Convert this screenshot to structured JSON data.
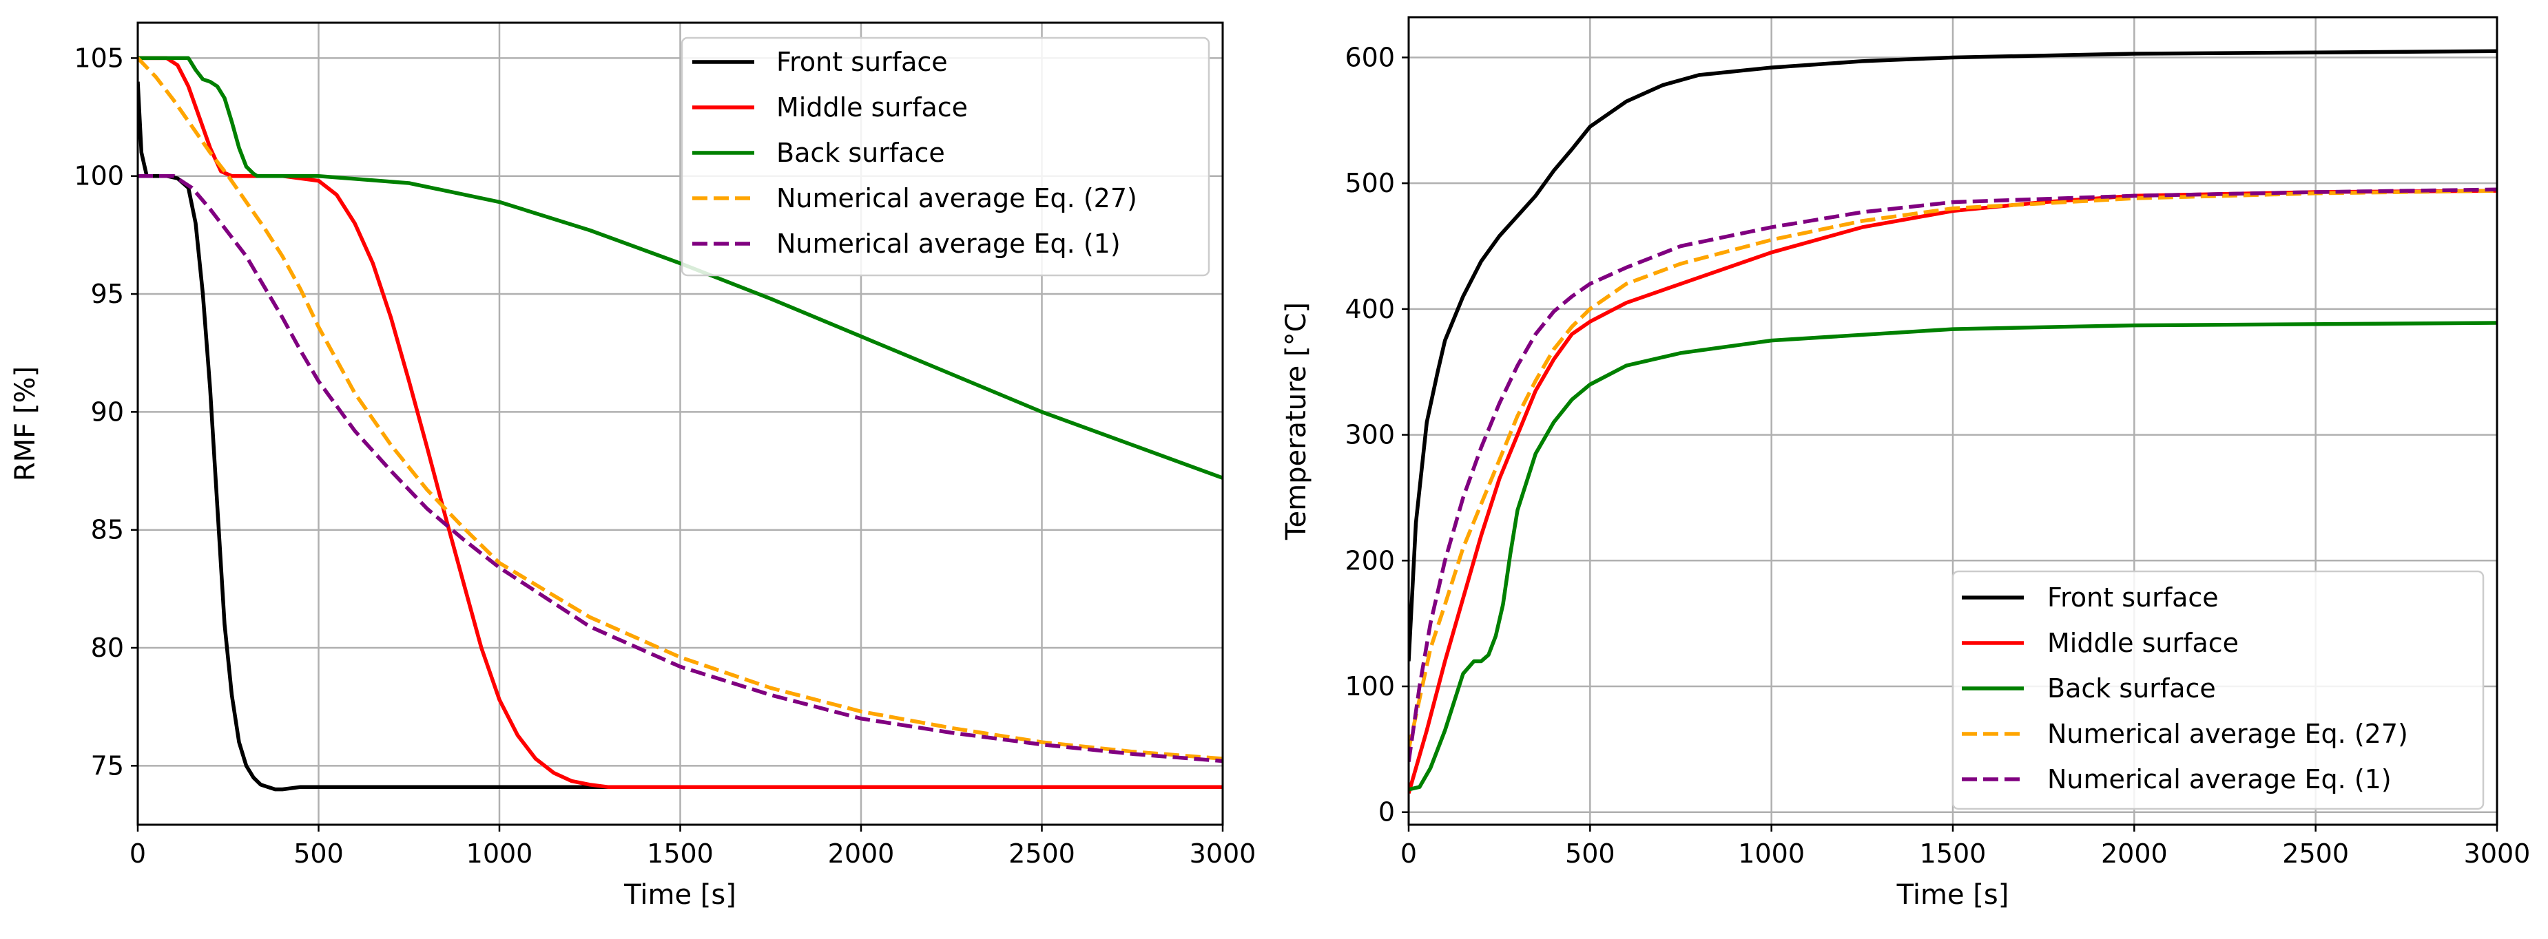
{
  "chart_data": [
    {
      "type": "line",
      "xlabel": "Time [s]",
      "ylabel": "RMF [%]",
      "xlim": [
        0,
        3000
      ],
      "ylim": [
        72.5,
        106.5
      ],
      "xticks": [
        0,
        500,
        1000,
        1500,
        2000,
        2500,
        3000
      ],
      "yticks": [
        75,
        80,
        85,
        90,
        95,
        100,
        105
      ],
      "grid": true,
      "legend_position": "upper right",
      "series": [
        {
          "name": "Front surface",
          "color": "#000000",
          "dash": "solid",
          "x": [
            0,
            10,
            25,
            50,
            80,
            110,
            140,
            160,
            180,
            200,
            220,
            240,
            260,
            280,
            300,
            320,
            340,
            360,
            380,
            400,
            450,
            500,
            1000,
            2000,
            3000
          ],
          "y": [
            104,
            101,
            100,
            100,
            100,
            99.9,
            99.5,
            98,
            95,
            91,
            86,
            81,
            78,
            76,
            75,
            74.5,
            74.2,
            74.1,
            74,
            74,
            74.1,
            74.1,
            74.1,
            74.1,
            74.1
          ]
        },
        {
          "name": "Middle surface",
          "color": "#ff0000",
          "dash": "solid",
          "x": [
            0,
            80,
            110,
            140,
            170,
            200,
            230,
            260,
            300,
            400,
            500,
            550,
            600,
            650,
            700,
            750,
            800,
            850,
            900,
            950,
            1000,
            1050,
            1100,
            1150,
            1200,
            1250,
            1300,
            1350,
            1400,
            1500,
            2000,
            3000
          ],
          "y": [
            105,
            105,
            104.7,
            103.8,
            102.5,
            101.2,
            100.2,
            100,
            100,
            100,
            99.8,
            99.2,
            98,
            96.3,
            94,
            91.3,
            88.5,
            85.6,
            82.8,
            80,
            77.8,
            76.3,
            75.3,
            74.7,
            74.35,
            74.2,
            74.1,
            74.1,
            74.1,
            74.1,
            74.1,
            74.1
          ]
        },
        {
          "name": "Back surface",
          "color": "#008000",
          "dash": "solid",
          "x": [
            0,
            140,
            160,
            180,
            200,
            220,
            240,
            260,
            280,
            300,
            320,
            330,
            340,
            350,
            500,
            750,
            1000,
            1250,
            1500,
            1750,
            2000,
            2250,
            2500,
            2750,
            3000
          ],
          "y": [
            105,
            105,
            104.5,
            104.1,
            104,
            103.8,
            103.3,
            102.3,
            101.2,
            100.4,
            100.1,
            100,
            100,
            100,
            100,
            99.7,
            98.9,
            97.7,
            96.3,
            94.8,
            93.2,
            91.6,
            90,
            88.6,
            87.2
          ]
        },
        {
          "name": "Numerical average Eq. (27)",
          "color": "#ffa500",
          "dash": "dashed",
          "x": [
            0,
            50,
            100,
            150,
            200,
            250,
            300,
            350,
            400,
            450,
            500,
            600,
            700,
            800,
            900,
            1000,
            1250,
            1500,
            1750,
            2000,
            2250,
            2500,
            2750,
            3000
          ],
          "y": [
            105,
            104.2,
            103.2,
            102.1,
            101,
            100,
            98.9,
            97.8,
            96.6,
            95.2,
            93.6,
            90.8,
            88.6,
            86.7,
            85.1,
            83.6,
            81.3,
            79.6,
            78.3,
            77.3,
            76.6,
            76,
            75.6,
            75.3
          ]
        },
        {
          "name": "Numerical average Eq. (1)",
          "color": "#800080",
          "dash": "dashed",
          "x": [
            0,
            50,
            100,
            150,
            200,
            250,
            300,
            350,
            400,
            450,
            500,
            600,
            700,
            800,
            900,
            1000,
            1250,
            1500,
            1750,
            2000,
            2250,
            2500,
            2750,
            3000
          ],
          "y": [
            100,
            100,
            100,
            99.5,
            98.6,
            97.6,
            96.6,
            95.3,
            94,
            92.6,
            91.3,
            89.2,
            87.5,
            85.9,
            84.6,
            83.4,
            80.9,
            79.2,
            78,
            77,
            76.4,
            75.9,
            75.5,
            75.2
          ]
        }
      ]
    },
    {
      "type": "line",
      "xlabel": "Time [s]",
      "ylabel": "Temperature [°C]",
      "xlim": [
        0,
        3000
      ],
      "ylim": [
        -10,
        632
      ],
      "xticks": [
        0,
        500,
        1000,
        1500,
        2000,
        2500,
        3000
      ],
      "yticks": [
        0,
        100,
        200,
        300,
        400,
        500,
        600
      ],
      "grid": true,
      "legend_position": "lower right",
      "series": [
        {
          "name": "Front surface",
          "color": "#000000",
          "dash": "solid",
          "x": [
            0,
            20,
            50,
            80,
            100,
            150,
            200,
            250,
            300,
            350,
            400,
            450,
            500,
            600,
            700,
            800,
            1000,
            1250,
            1500,
            2000,
            2500,
            3000
          ],
          "y": [
            120,
            230,
            310,
            350,
            375,
            410,
            438,
            458,
            474,
            490,
            510,
            527,
            545,
            565,
            578,
            586,
            592,
            597,
            600,
            603,
            604,
            605
          ]
        },
        {
          "name": "Middle surface",
          "color": "#ff0000",
          "dash": "solid",
          "x": [
            0,
            50,
            100,
            150,
            200,
            250,
            300,
            350,
            400,
            450,
            500,
            600,
            750,
            1000,
            1250,
            1500,
            1750,
            2000,
            2500,
            3000
          ],
          "y": [
            15,
            65,
            120,
            170,
            220,
            265,
            300,
            335,
            360,
            380,
            390,
            405,
            420,
            445,
            465,
            478,
            485,
            490,
            493,
            494
          ]
        },
        {
          "name": "Back surface",
          "color": "#008000",
          "dash": "solid",
          "x": [
            0,
            30,
            60,
            100,
            150,
            180,
            200,
            220,
            240,
            260,
            280,
            300,
            350,
            400,
            450,
            500,
            600,
            750,
            1000,
            1500,
            2000,
            3000
          ],
          "y": [
            18,
            20,
            35,
            65,
            110,
            120,
            120,
            125,
            140,
            165,
            205,
            240,
            285,
            310,
            328,
            340,
            355,
            365,
            375,
            384,
            387,
            389
          ]
        },
        {
          "name": "Numerical average Eq. (27)",
          "color": "#ffa500",
          "dash": "dashed",
          "x": [
            0,
            30,
            60,
            100,
            150,
            200,
            250,
            300,
            350,
            400,
            450,
            500,
            600,
            750,
            1000,
            1250,
            1500,
            2000,
            2500,
            3000
          ],
          "y": [
            50,
            90,
            130,
            165,
            210,
            245,
            280,
            315,
            343,
            368,
            386,
            400,
            420,
            436,
            455,
            470,
            480,
            488,
            492,
            494
          ]
        },
        {
          "name": "Numerical average Eq. (1)",
          "color": "#800080",
          "dash": "dashed",
          "x": [
            0,
            30,
            60,
            100,
            150,
            200,
            250,
            300,
            350,
            400,
            450,
            500,
            600,
            750,
            1000,
            1250,
            1500,
            2000,
            2500,
            3000
          ],
          "y": [
            40,
            100,
            150,
            200,
            250,
            290,
            325,
            355,
            380,
            398,
            410,
            420,
            433,
            450,
            465,
            477,
            485,
            490,
            493,
            495
          ]
        }
      ]
    }
  ]
}
